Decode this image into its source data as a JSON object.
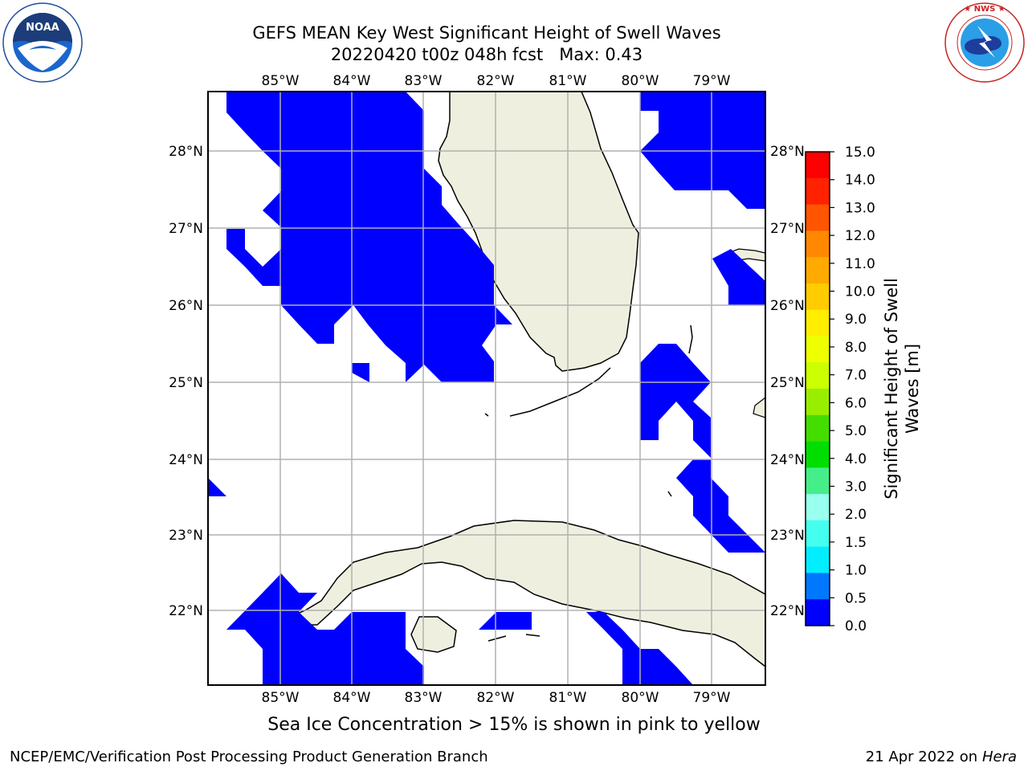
{
  "title": {
    "line1": "GEFS MEAN Key West Significant Height of Swell Waves",
    "line2": "20220420 t00z 048h fcst   Max: 0.43"
  },
  "logos": {
    "left": {
      "text": "NOAA",
      "ring_text": "NATIONAL OCEANIC AND ATMOSPHERIC ADMINISTRATION · U.S. DEPARTMENT OF COMMERCE"
    },
    "right": {
      "ring_text": "NATIONAL WEATHER SERVICE"
    }
  },
  "map": {
    "lon_labels": [
      "85°W",
      "84°W",
      "83°W",
      "82°W",
      "81°W",
      "80°W",
      "79°W"
    ],
    "lat_labels": [
      "28°N",
      "27°N",
      "26°N",
      "25°N",
      "24°N",
      "23°N",
      "22°N"
    ],
    "colors": {
      "land": "#efefdf",
      "swell_low": "#0000ff",
      "grid": "#b0b0b0",
      "frame": "#000000"
    }
  },
  "colorbar": {
    "label_line1": "Significant Height of Swell",
    "label_line2": "Waves [m]",
    "ticks": [
      "15.0",
      "14.0",
      "13.0",
      "12.0",
      "11.0",
      "10.0",
      "9.0",
      "8.0",
      "7.0",
      "6.0",
      "5.0",
      "4.0",
      "3.0",
      "2.0",
      "1.5",
      "1.0",
      "0.5",
      "0.0"
    ],
    "colors": [
      "#ff0000",
      "#ff2200",
      "#ff5500",
      "#ff8800",
      "#ffaa00",
      "#ffcc00",
      "#ffee00",
      "#eeff00",
      "#ccff00",
      "#99ee00",
      "#44dd00",
      "#00dd00",
      "#44ee88",
      "#99ffee",
      "#44ffee",
      "#00eeff",
      "#0077ff",
      "#0000ff"
    ]
  },
  "caption": "Sea Ice Concentration > 15% is shown in pink to yellow",
  "footer": {
    "left": "NCEP/EMC/Verification Post Processing Product Generation Branch",
    "right_prefix": "21 Apr 2022 on ",
    "right_host": "Hera"
  }
}
